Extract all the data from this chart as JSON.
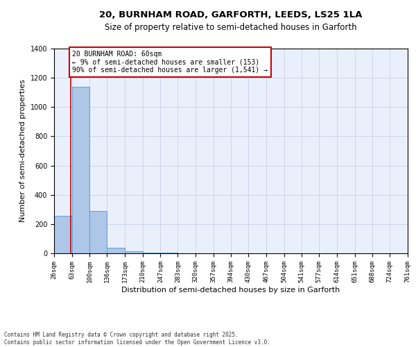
{
  "title_line1": "20, BURNHAM ROAD, GARFORTH, LEEDS, LS25 1LA",
  "title_line2": "Size of property relative to semi-detached houses in Garforth",
  "xlabel": "Distribution of semi-detached houses by size in Garforth",
  "ylabel": "Number of semi-detached properties",
  "bin_edges": [
    26,
    63,
    100,
    136,
    173,
    210,
    247,
    283,
    320,
    357,
    394,
    430,
    467,
    504,
    541,
    577,
    614,
    651,
    688,
    724,
    761
  ],
  "counts": [
    255,
    1140,
    290,
    40,
    15,
    5,
    3,
    2,
    1,
    1,
    1,
    0,
    0,
    0,
    0,
    0,
    0,
    0,
    0,
    0
  ],
  "bar_color": "#aec6e8",
  "bar_edge_color": "#5a9fd4",
  "property_line_x": 60,
  "property_line_color": "#cc0000",
  "annotation_text": "20 BURNHAM ROAD: 60sqm\n← 9% of semi-detached houses are smaller (153)\n90% of semi-detached houses are larger (1,541) →",
  "annotation_box_color": "#ffffff",
  "annotation_box_edge": "#cc0000",
  "ylim": [
    0,
    1400
  ],
  "yticks": [
    0,
    200,
    400,
    600,
    800,
    1000,
    1200,
    1400
  ],
  "background_color": "#eaf0fb",
  "footer_text": "Contains HM Land Registry data © Crown copyright and database right 2025.\nContains public sector information licensed under the Open Government Licence v3.0.",
  "title_fontsize": 9.5,
  "subtitle_fontsize": 8.5,
  "tick_fontsize": 6.5,
  "ylabel_fontsize": 8,
  "xlabel_fontsize": 8,
  "annotation_fontsize": 7,
  "footer_fontsize": 5.5
}
